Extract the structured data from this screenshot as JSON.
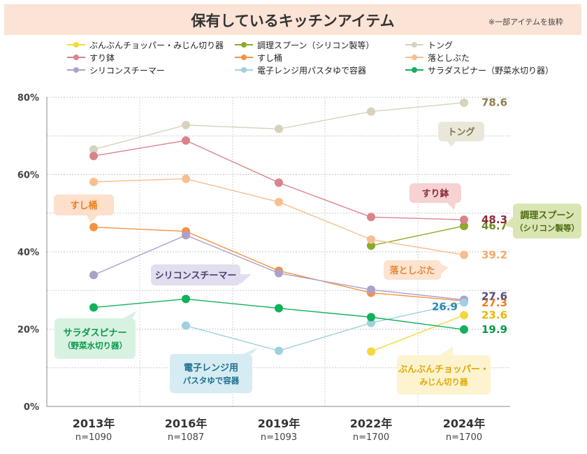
{
  "header": {
    "title": "保有しているキッチンアイテム",
    "note": "※一部アイテムを抜粋"
  },
  "chart_data": {
    "type": "line",
    "title": "保有しているキッチンアイテム",
    "categories": [
      "2013年",
      "2016年",
      "2019年",
      "2022年",
      "2024年"
    ],
    "sample_sizes": [
      "n=1090",
      "n=1087",
      "n=1093",
      "n=1700",
      "n=1700"
    ],
    "ylim": [
      0,
      80
    ],
    "yticks": [
      "0%",
      "20%",
      "40%",
      "60%",
      "80%"
    ],
    "grid": true,
    "legend_position": "top",
    "series": [
      {
        "name": "ぶんぶんチョッパー・みじん切り器",
        "color": "#f5d83c",
        "values": [
          null,
          null,
          null,
          14.2,
          23.6
        ],
        "end_label": "23.6",
        "label_color": "#e6b800"
      },
      {
        "name": "調理スプーン（シリコン製等）",
        "color": "#8aaa2c",
        "values": [
          null,
          null,
          null,
          41.6,
          46.7
        ],
        "end_label": "46.7",
        "label_color": "#6e8a1e"
      },
      {
        "name": "トング",
        "color": "#d6d2bd",
        "values": [
          66.5,
          72.8,
          71.8,
          76.3,
          78.6
        ],
        "end_label": "78.6",
        "label_color": "#8c8050"
      },
      {
        "name": "すり鉢",
        "color": "#d9848c",
        "values": [
          64.8,
          68.8,
          57.9,
          49.0,
          48.3
        ],
        "end_label": "48.3",
        "label_color": "#8c2a3c"
      },
      {
        "name": "すし桶",
        "color": "#f49242",
        "values": [
          46.4,
          45.3,
          35.1,
          29.4,
          27.3
        ],
        "end_label": "27.3",
        "label_color": "#f07c1e"
      },
      {
        "name": "落としぶた",
        "color": "#f7bf8f",
        "values": [
          58.1,
          58.9,
          52.9,
          43.2,
          39.2
        ],
        "end_label": "39.2",
        "label_color": "#f2a86a"
      },
      {
        "name": "シリコンスチーマー",
        "color": "#aea0cc",
        "values": [
          34.0,
          44.3,
          34.5,
          30.2,
          27.6
        ],
        "end_label": "27.6",
        "label_color": "#5a4a80"
      },
      {
        "name": "電子レンジ用パスタゆで容器",
        "color": "#9fd0e0",
        "values": [
          null,
          20.9,
          14.4,
          21.6,
          26.9
        ],
        "end_label": "26.9",
        "label_color": "#2a8ab0"
      },
      {
        "name": "サラダスピナー（野菜水切り器）",
        "color": "#11b15b",
        "values": [
          25.6,
          27.8,
          25.4,
          23.1,
          19.9
        ],
        "end_label": "19.9",
        "label_color": "#0a9a48"
      }
    ],
    "callouts": [
      {
        "lines": [
          "トング"
        ],
        "fill": "#eae7d9",
        "color": "#7d7350"
      },
      {
        "lines": [
          "すり鉢"
        ],
        "fill": "#f6d2d2",
        "color": "#8c2a3c"
      },
      {
        "lines": [
          "調理スプーン",
          "（シリコン製等）"
        ],
        "fill": "#d9e6b3",
        "color": "#4f6b12"
      },
      {
        "lines": [
          "落としぶた"
        ],
        "fill": "#fde3d0",
        "color": "#e4893c"
      },
      {
        "lines": [
          "すし桶"
        ],
        "fill": "#fde0cc",
        "color": "#f07c1e"
      },
      {
        "lines": [
          "シリコンスチーマー"
        ],
        "fill": "#e2ddef",
        "color": "#4a3f70"
      },
      {
        "lines": [
          "サラダスピナー",
          "（野菜水切り器）"
        ],
        "fill": "#d8f2e2",
        "color": "#0a9a48"
      },
      {
        "lines": [
          "電子レンジ用",
          "パスタゆで容器"
        ],
        "fill": "#d6ecf3",
        "color": "#1f6f8f"
      },
      {
        "lines": [
          "ぶんぶんチョッパー・",
          "みじん切り器"
        ],
        "fill": "#fdf3cf",
        "color": "#e0a800"
      }
    ]
  }
}
